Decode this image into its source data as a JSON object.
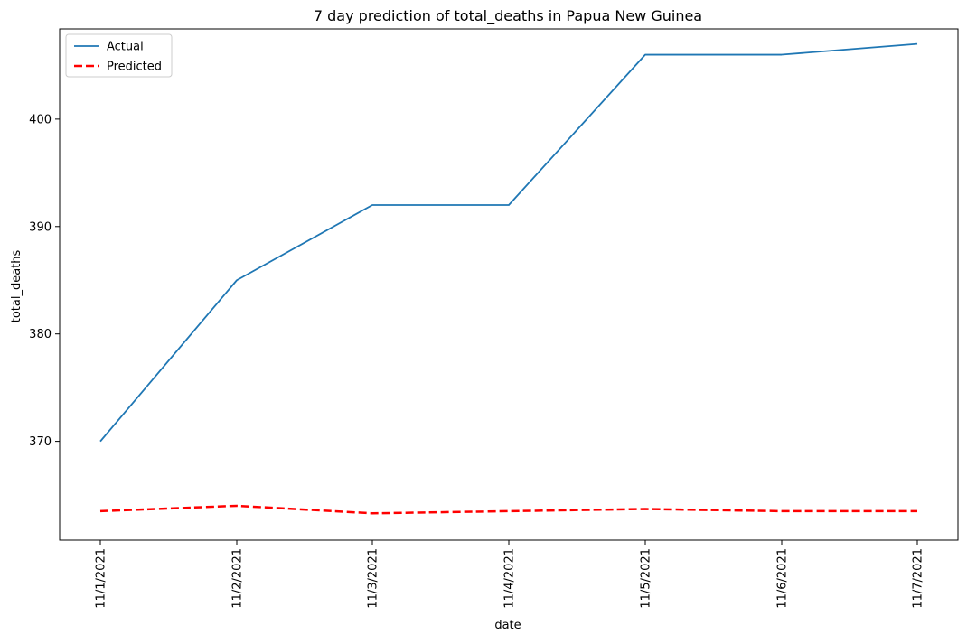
{
  "chart_data": {
    "type": "line",
    "title": "7 day prediction of total_deaths in Papua New Guinea",
    "xlabel": "date",
    "ylabel": "total_deaths",
    "categories": [
      "11/1/2021",
      "11/2/2021",
      "11/3/2021",
      "11/4/2021",
      "11/5/2021",
      "11/6/2021",
      "11/7/2021"
    ],
    "ylim": [
      360.8,
      408.4
    ],
    "yticks": [
      370,
      380,
      390,
      400
    ],
    "grid": false,
    "legend_position": "upper left",
    "series": [
      {
        "name": "Actual",
        "color": "#1f77b4",
        "style": "solid",
        "values": [
          370,
          385,
          392,
          392,
          406,
          406,
          407
        ]
      },
      {
        "name": "Predicted",
        "color": "#ff0000",
        "style": "dashed",
        "values": [
          363.5,
          364.0,
          363.3,
          363.5,
          363.7,
          363.5,
          363.5
        ]
      }
    ]
  }
}
